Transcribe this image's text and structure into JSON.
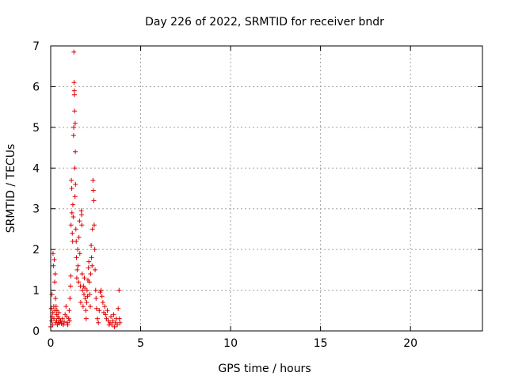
{
  "chart_data": {
    "type": "scatter",
    "title": "Day 226 of 2022, SRMTID for receiver bndr",
    "xlabel": "GPS time / hours",
    "ylabel": "SRMTID / TECUs",
    "xlim": [
      0,
      24
    ],
    "ylim": [
      0,
      7
    ],
    "xticks": [
      0,
      5,
      10,
      15,
      20
    ],
    "yticks": [
      0,
      1,
      2,
      3,
      4,
      5,
      6,
      7
    ],
    "grid": true,
    "marker": "plus",
    "marker_color": "#dd0000",
    "series": [
      {
        "name": "SRMTID",
        "points": [
          [
            0.0,
            0.1
          ],
          [
            0.03,
            0.55
          ],
          [
            0.05,
            0.25
          ],
          [
            0.07,
            0.9
          ],
          [
            0.08,
            0.35
          ],
          [
            0.1,
            0.15
          ],
          [
            0.12,
            0.45
          ],
          [
            0.13,
            1.9
          ],
          [
            0.15,
            1.6
          ],
          [
            0.17,
            0.6
          ],
          [
            0.18,
            0.3
          ],
          [
            0.2,
            1.75
          ],
          [
            0.22,
            1.2
          ],
          [
            0.23,
            0.5
          ],
          [
            0.25,
            1.4
          ],
          [
            0.27,
            0.8
          ],
          [
            0.28,
            0.2
          ],
          [
            0.3,
            0.6
          ],
          [
            0.32,
            0.4
          ],
          [
            0.33,
            0.25
          ],
          [
            0.35,
            0.5
          ],
          [
            0.37,
            0.15
          ],
          [
            0.4,
            0.35
          ],
          [
            0.42,
            0.2
          ],
          [
            0.45,
            0.45
          ],
          [
            0.47,
            0.3
          ],
          [
            0.5,
            0.2
          ],
          [
            0.55,
            0.25
          ],
          [
            0.6,
            0.18
          ],
          [
            0.65,
            0.3
          ],
          [
            0.7,
            0.15
          ],
          [
            0.75,
            0.22
          ],
          [
            0.8,
            0.4
          ],
          [
            0.85,
            0.6
          ],
          [
            0.9,
            0.35
          ],
          [
            0.92,
            0.2
          ],
          [
            0.95,
            0.15
          ],
          [
            1.0,
            0.3
          ],
          [
            1.03,
            0.5
          ],
          [
            1.05,
            0.25
          ],
          [
            1.07,
            0.8
          ],
          [
            1.1,
            1.1
          ],
          [
            1.12,
            1.35
          ],
          [
            1.13,
            2.6
          ],
          [
            1.15,
            3.7
          ],
          [
            1.17,
            3.5
          ],
          [
            1.18,
            2.9
          ],
          [
            1.2,
            2.4
          ],
          [
            1.22,
            2.2
          ],
          [
            1.23,
            3.1
          ],
          [
            1.25,
            2.8
          ],
          [
            1.27,
            4.8
          ],
          [
            1.28,
            5.0
          ],
          [
            1.29,
            6.85
          ],
          [
            1.3,
            6.1
          ],
          [
            1.31,
            5.9
          ],
          [
            1.32,
            5.8
          ],
          [
            1.33,
            5.4
          ],
          [
            1.34,
            4.0
          ],
          [
            1.35,
            3.3
          ],
          [
            1.36,
            5.1
          ],
          [
            1.37,
            4.4
          ],
          [
            1.38,
            3.6
          ],
          [
            1.4,
            2.5
          ],
          [
            1.42,
            2.2
          ],
          [
            1.43,
            1.8
          ],
          [
            1.45,
            1.3
          ],
          [
            1.47,
            1.5
          ],
          [
            1.5,
            2.0
          ],
          [
            1.52,
            1.6
          ],
          [
            1.55,
            1.2
          ],
          [
            1.57,
            2.3
          ],
          [
            1.6,
            2.7
          ],
          [
            1.62,
            1.9
          ],
          [
            1.65,
            1.1
          ],
          [
            1.67,
            0.7
          ],
          [
            1.7,
            2.95
          ],
          [
            1.72,
            2.85
          ],
          [
            1.73,
            2.6
          ],
          [
            1.75,
            1.4
          ],
          [
            1.77,
            1.0
          ],
          [
            1.8,
            0.6
          ],
          [
            1.82,
            1.1
          ],
          [
            1.85,
            0.9
          ],
          [
            1.87,
            1.3
          ],
          [
            1.9,
            1.05
          ],
          [
            1.92,
            0.8
          ],
          [
            1.95,
            0.5
          ],
          [
            1.97,
            0.3
          ],
          [
            2.0,
            0.7
          ],
          [
            2.02,
            1.0
          ],
          [
            2.05,
            0.85
          ],
          [
            2.07,
            1.25
          ],
          [
            2.1,
            1.55
          ],
          [
            2.12,
            1.7
          ],
          [
            2.15,
            1.2
          ],
          [
            2.17,
            0.9
          ],
          [
            2.2,
            0.6
          ],
          [
            2.22,
            1.4
          ],
          [
            2.25,
            2.1
          ],
          [
            2.27,
            1.8
          ],
          [
            2.3,
            1.6
          ],
          [
            2.32,
            2.5
          ],
          [
            2.35,
            3.7
          ],
          [
            2.37,
            3.45
          ],
          [
            2.4,
            3.2
          ],
          [
            2.42,
            2.6
          ],
          [
            2.45,
            2.0
          ],
          [
            2.47,
            1.5
          ],
          [
            2.5,
            1.0
          ],
          [
            2.52,
            0.8
          ],
          [
            2.55,
            0.55
          ],
          [
            2.6,
            0.3
          ],
          [
            2.65,
            0.2
          ],
          [
            2.7,
            0.5
          ],
          [
            2.75,
            0.95
          ],
          [
            2.8,
            1.0
          ],
          [
            2.85,
            0.85
          ],
          [
            2.9,
            0.7
          ],
          [
            2.95,
            0.45
          ],
          [
            3.0,
            0.6
          ],
          [
            3.05,
            0.4
          ],
          [
            3.1,
            0.3
          ],
          [
            3.15,
            0.5
          ],
          [
            3.2,
            0.25
          ],
          [
            3.25,
            0.15
          ],
          [
            3.3,
            0.2
          ],
          [
            3.35,
            0.35
          ],
          [
            3.4,
            0.15
          ],
          [
            3.45,
            0.25
          ],
          [
            3.5,
            0.4
          ],
          [
            3.55,
            0.1
          ],
          [
            3.6,
            0.2
          ],
          [
            3.65,
            0.3
          ],
          [
            3.7,
            0.15
          ],
          [
            3.75,
            0.55
          ],
          [
            3.8,
            1.0
          ],
          [
            3.82,
            0.3
          ],
          [
            3.85,
            0.2
          ]
        ]
      }
    ]
  }
}
